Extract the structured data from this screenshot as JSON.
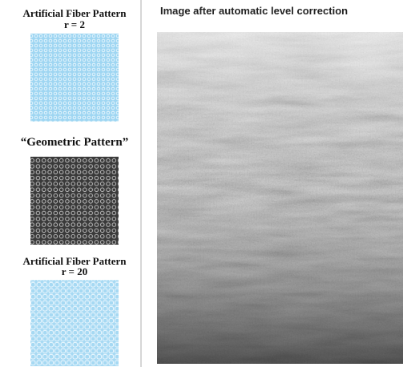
{
  "left_panel": {
    "items": [
      {
        "title": "Artificial Fiber Pattern",
        "subtitle": "r = 2"
      },
      {
        "title": "“Geometric Pattern”"
      },
      {
        "title": "Artificial Fiber Pattern",
        "subtitle": "r = 20"
      }
    ]
  },
  "right_panel": {
    "title": "Image after automatic level correction"
  }
}
